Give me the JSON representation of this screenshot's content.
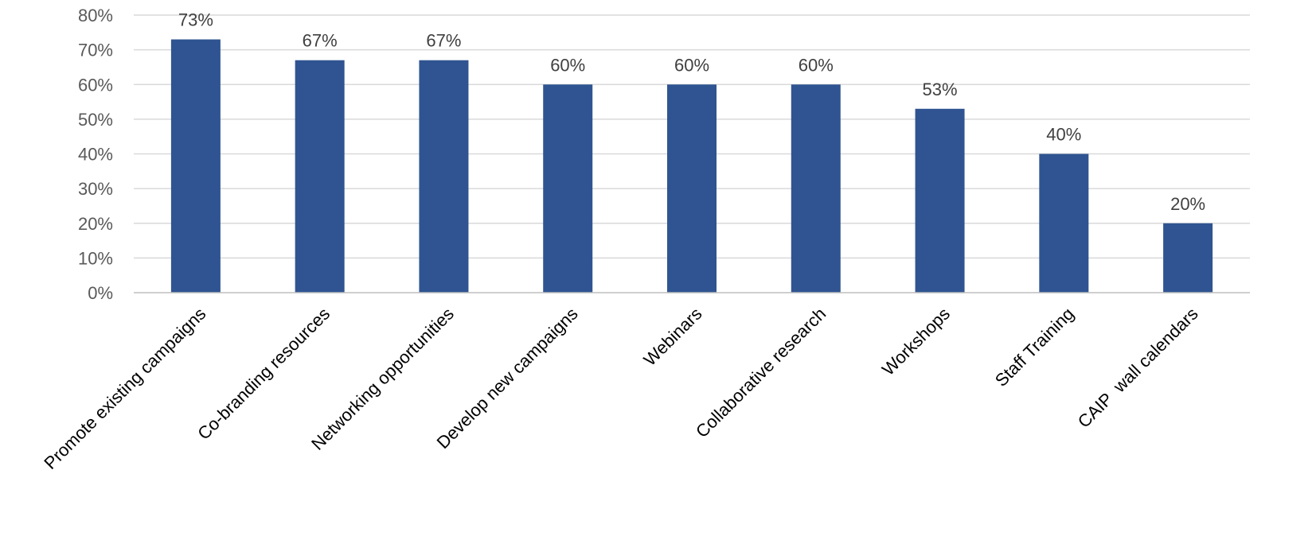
{
  "chart_data": {
    "type": "bar",
    "categories": [
      "Promote existing campaigns",
      "Co-branding resources",
      "Networking opportunities",
      "Develop new campaigns",
      "Webinars",
      "Collaborative research",
      "Workshops",
      "Staff Training",
      "CAIP  wall calendars"
    ],
    "values": [
      73,
      67,
      67,
      60,
      60,
      60,
      53,
      40,
      20
    ],
    "data_labels": [
      "73%",
      "67%",
      "67%",
      "60%",
      "60%",
      "60%",
      "53%",
      "40%",
      "20%"
    ],
    "y_ticks": [
      0,
      10,
      20,
      30,
      40,
      50,
      60,
      70,
      80
    ],
    "y_tick_labels": [
      "0%",
      "10%",
      "20%",
      "30%",
      "40%",
      "50%",
      "60%",
      "70%",
      "80%"
    ],
    "ylim": [
      0,
      80
    ],
    "title": "",
    "xlabel": "",
    "ylabel": "",
    "grid": true,
    "legend": "none",
    "colors": {
      "bar": "#2f5491",
      "grid": "#d9d9d9"
    }
  }
}
